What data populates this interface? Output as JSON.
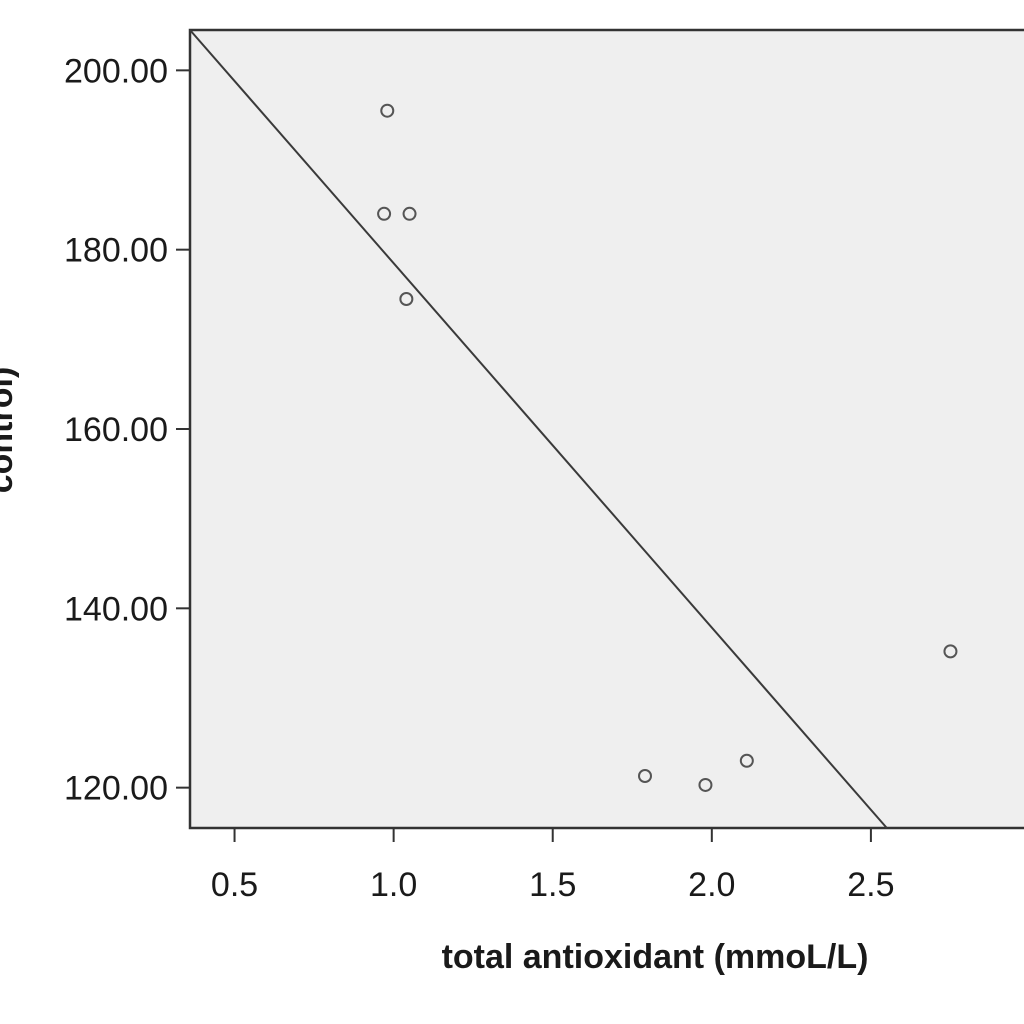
{
  "chart_data": {
    "type": "scatter",
    "xlabel": "total antioxidant (mmoL/L)",
    "ylabel": "control)",
    "x_ticks": [
      "0.5",
      "1.0",
      "1.5",
      "2.0",
      "2.5"
    ],
    "y_ticks": [
      "120.00",
      "140.00",
      "160.00",
      "180.00",
      "200.00"
    ],
    "xlim": [
      0.36,
      3.0
    ],
    "ylim": [
      115.5,
      204.5
    ],
    "points": [
      {
        "x": 0.98,
        "y": 195.5
      },
      {
        "x": 0.97,
        "y": 184.0
      },
      {
        "x": 1.05,
        "y": 184.0
      },
      {
        "x": 1.04,
        "y": 174.5
      },
      {
        "x": 1.79,
        "y": 121.3
      },
      {
        "x": 1.98,
        "y": 120.3
      },
      {
        "x": 2.11,
        "y": 123.0
      },
      {
        "x": 2.75,
        "y": 135.2
      }
    ],
    "fit_line": {
      "x1": 0.36,
      "y1": 204.5,
      "x2": 2.55,
      "y2": 115.5
    },
    "grid": false,
    "colors": {
      "plot_background": "#efefef",
      "marker": "#555555",
      "line": "#3a3a3a",
      "axis": "#333333"
    }
  }
}
